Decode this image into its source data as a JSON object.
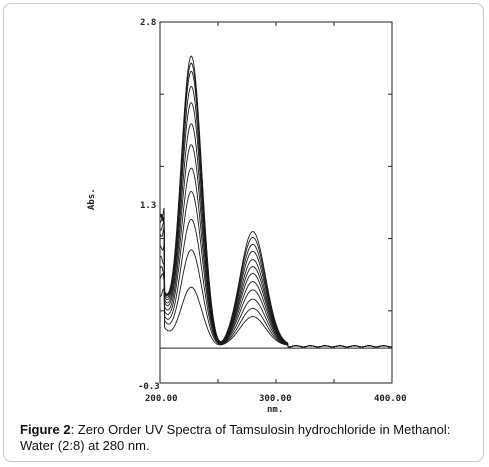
{
  "chart_data": {
    "type": "line",
    "xlabel": "nm.",
    "ylabel": "Abs.",
    "xlim": [
      200,
      400
    ],
    "ylim": [
      -0.3,
      2.8
    ],
    "x_tick_labels": [
      "200.00",
      "300.00",
      "400.00"
    ],
    "y_tick_labels": [
      "2.8",
      "1.3",
      "-0.3"
    ],
    "grid": false,
    "peak_nm": [
      227,
      280
    ],
    "series": [
      {
        "peak1": 0.5,
        "peak2": 0.25,
        "start": 0.45
      },
      {
        "peak1": 0.82,
        "peak2": 0.32,
        "start": 0.6
      },
      {
        "peak1": 1.08,
        "peak2": 0.4,
        "start": 0.68
      },
      {
        "peak1": 1.32,
        "peak2": 0.48,
        "start": 0.78
      },
      {
        "peak1": 1.52,
        "peak2": 0.55,
        "start": 0.88
      },
      {
        "peak1": 1.72,
        "peak2": 0.62,
        "start": 0.98
      },
      {
        "peak1": 1.9,
        "peak2": 0.68,
        "start": 1.02
      },
      {
        "peak1": 2.08,
        "peak2": 0.74,
        "start": 1.08
      },
      {
        "peak1": 2.22,
        "peak2": 0.81,
        "start": 1.12
      },
      {
        "peak1": 2.35,
        "peak2": 0.87,
        "start": 1.14
      },
      {
        "peak1": 2.42,
        "peak2": 0.93,
        "start": 1.14
      },
      {
        "peak1": 2.48,
        "peak2": 0.98,
        "start": 1.15
      }
    ],
    "baseline": 0.0
  },
  "caption": {
    "label": "Figure 2",
    "text": ": Zero Order UV Spectra of Tamsulosin hydrochloride in Methanol: Water (2:8) at 280 nm."
  }
}
